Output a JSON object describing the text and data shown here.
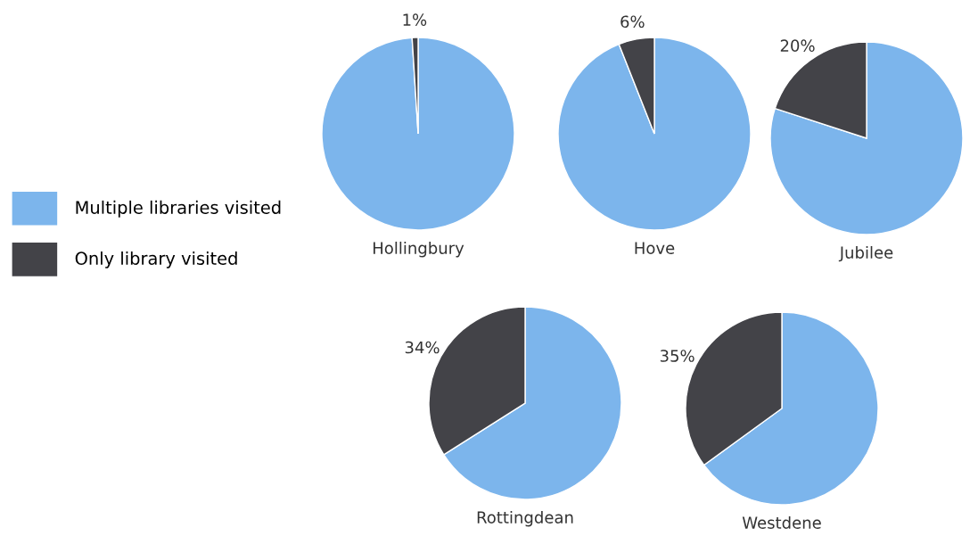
{
  "chart_data": [
    {
      "type": "pie",
      "title": "Hollingbury",
      "categories": [
        "Multiple libraries visited",
        "Only library visited"
      ],
      "values": [
        99,
        1
      ],
      "colors": [
        "#7cb5ec",
        "#434348"
      ],
      "value_labels": [
        null,
        "1%"
      ],
      "legend": "left"
    },
    {
      "type": "pie",
      "title": "Hove",
      "categories": [
        null,
        null
      ],
      "values": [
        94,
        6
      ],
      "colors": [
        "#7cb5ec",
        "#434348"
      ],
      "value_labels": [
        null,
        "6%"
      ]
    },
    {
      "type": "pie",
      "title": "Jubilee",
      "categories": [
        null,
        null
      ],
      "values": [
        80,
        20
      ],
      "colors": [
        "#7cb5ec",
        "#434348"
      ],
      "value_labels": [
        null,
        "20%"
      ]
    },
    {
      "type": "pie",
      "title": "Rottingdean",
      "categories": [
        null,
        null
      ],
      "values": [
        66,
        34
      ],
      "colors": [
        "#7cb5ec",
        "#434348"
      ],
      "value_labels": [
        null,
        "34%"
      ]
    },
    {
      "type": "pie",
      "title": "Westdene",
      "categories": [
        null,
        null
      ],
      "values": [
        65,
        35
      ],
      "colors": [
        "#7cb5ec",
        "#434348"
      ],
      "value_labels": [
        null,
        "35%"
      ]
    }
  ]
}
